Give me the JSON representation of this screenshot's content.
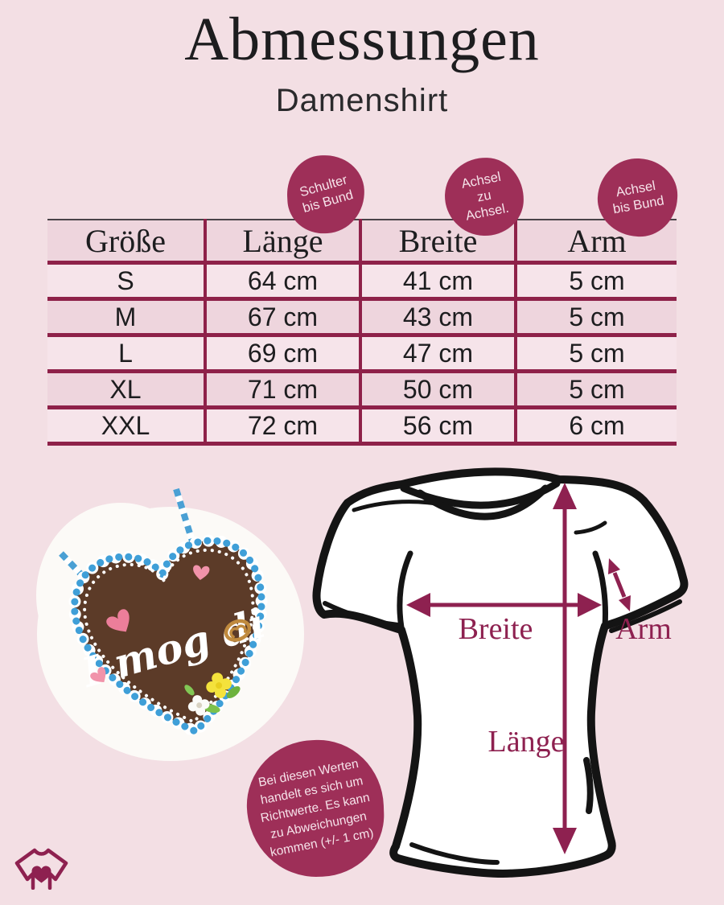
{
  "colors": {
    "background": "#f3dfe4",
    "berry": "#8e2150",
    "badge": "#9e2f58",
    "table_border": "#8e2149",
    "row_light": "#f6e4ea",
    "row_dark": "#eed5dd",
    "text_dark": "#1d1d1f",
    "stamp_text": "#f6e3ea",
    "shirt_outline": "#141414",
    "heart_brown": "#5c3b28",
    "icing_blue": "#3f9fd8",
    "ribbon_blue": "#4aa0d4",
    "blob_white": "#fcfaf7",
    "decor_pink": "#f193aa",
    "decor_pink_dark": "#ec7e9a",
    "decor_yellow": "#f4e23c",
    "decor_green": "#7cc14c",
    "pretzel_tan": "#c08a3e",
    "heart_text": "#ffffff"
  },
  "header": {
    "title": "Abmessungen",
    "subtitle": "Damenshirt"
  },
  "badges": [
    {
      "lines": [
        "Schulter",
        "bis Bund"
      ]
    },
    {
      "lines": [
        "Achsel",
        "zu",
        "Achsel."
      ]
    },
    {
      "lines": [
        "Achsel",
        "bis Bund"
      ]
    }
  ],
  "size_table": {
    "columns": [
      "Größe",
      "Länge",
      "Breite",
      "Arm"
    ],
    "rows": [
      [
        "S",
        "64 cm",
        "41 cm",
        "5 cm"
      ],
      [
        "M",
        "67 cm",
        "43 cm",
        "5 cm"
      ],
      [
        "L",
        "69 cm",
        "47 cm",
        "5 cm"
      ],
      [
        "XL",
        "71 cm",
        "50 cm",
        "5 cm"
      ],
      [
        "XXL",
        "72 cm",
        "56 cm",
        "6 cm"
      ]
    ]
  },
  "diagram": {
    "width_label": "Breite",
    "length_label": "Länge",
    "arm_label": "Arm"
  },
  "gingerbread": {
    "message": "I mog di"
  },
  "note": {
    "lines": [
      "Bei diesen Werten",
      "handelt es sich um",
      "Richtwerte. Es kann",
      "zu Abweichungen",
      "kommen (+/- 1 cm)"
    ]
  }
}
